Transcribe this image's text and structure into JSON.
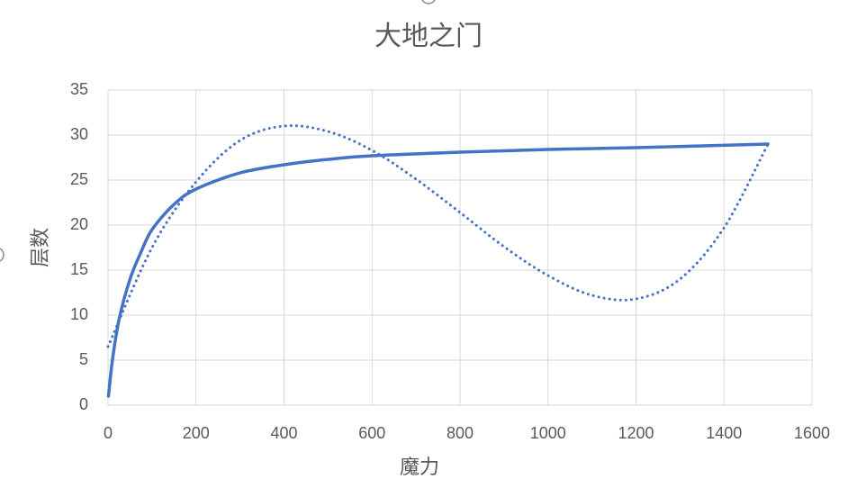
{
  "chart_data": {
    "type": "line",
    "title": "大地之门",
    "x_label": "魔力",
    "y_label": "层数",
    "xlim": [
      0,
      1600
    ],
    "xticks": [
      0,
      200,
      400,
      600,
      800,
      1000,
      1200,
      1400,
      1600
    ],
    "ylim": [
      0,
      35
    ],
    "yticks": [
      0,
      5,
      10,
      15,
      20,
      25,
      30,
      35
    ],
    "grid": true,
    "series": [
      {
        "color": "#4472c4",
        "style": "solid",
        "x": [
          1,
          10,
          25,
          50,
          75,
          100,
          150,
          200,
          300,
          400,
          500,
          600,
          800,
          1000,
          1200,
          1500
        ],
        "values": [
          1,
          5,
          9.5,
          14,
          17,
          19.5,
          22.3,
          24,
          25.8,
          26.7,
          27.3,
          27.7,
          28.1,
          28.4,
          28.6,
          29
        ]
      },
      {
        "color": "#4472c4",
        "style": "dotted",
        "x": [
          0,
          100,
          200,
          300,
          400,
          500,
          600,
          700,
          800,
          900,
          1000,
          1100,
          1200,
          1300,
          1400,
          1500
        ],
        "values": [
          6.5,
          17.5,
          24.8,
          29.4,
          31,
          30.4,
          28.3,
          25.1,
          21.4,
          17.6,
          14.4,
          12.2,
          11.8,
          14,
          19.7,
          29
        ]
      }
    ]
  }
}
